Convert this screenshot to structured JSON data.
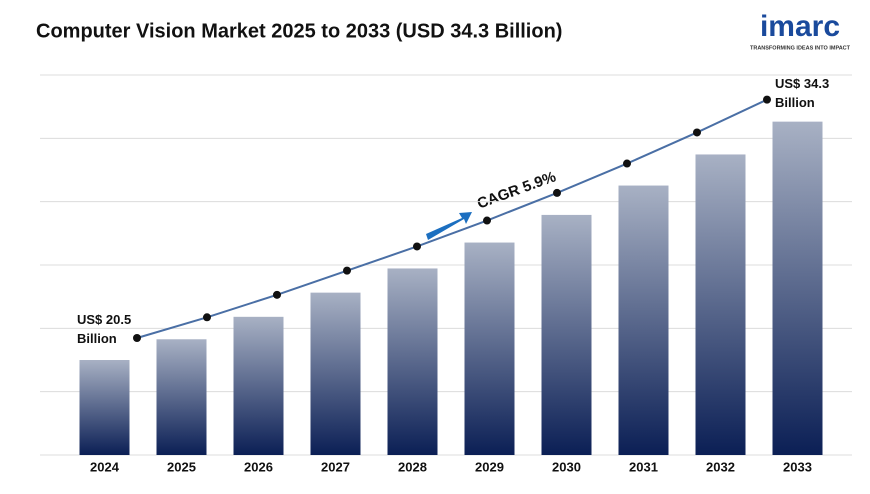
{
  "chart_data": {
    "type": "bar",
    "title": "Computer Vision Market 2025 to 2033 (USD 34.3 Billion)",
    "categories": [
      "2024",
      "2025",
      "2026",
      "2027",
      "2028",
      "2029",
      "2030",
      "2031",
      "2032",
      "2033"
    ],
    "values": [
      20.5,
      21.7,
      23.0,
      24.4,
      25.8,
      27.3,
      28.9,
      30.6,
      32.4,
      34.3
    ],
    "value_labels": [
      "US$ 20.5 Billion",
      null,
      null,
      null,
      null,
      null,
      null,
      null,
      null,
      "US$ 34.3 Billion"
    ],
    "annotation": "CAGR 5.9%",
    "color": "#0b1f55",
    "line_color": "#4a6fa5",
    "ylim": [
      15,
      37
    ],
    "grid": true
  },
  "logo": {
    "name": "imarc",
    "tagline": "TRANSFORMING IDEAS INTO IMPACT"
  }
}
